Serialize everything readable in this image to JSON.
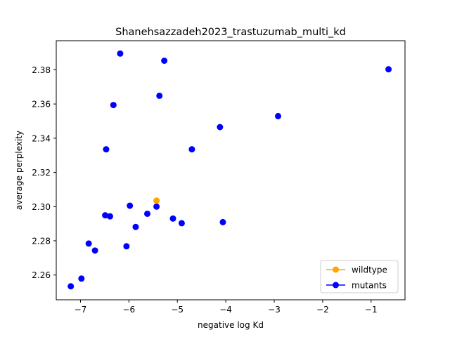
{
  "chart_data": {
    "type": "scatter",
    "title": "Shanehsazzadeh2023_trastuzumab_multi_kd",
    "xlabel": "negative log Kd",
    "ylabel": "average perplexity",
    "xlim": [
      -7.5,
      -0.3
    ],
    "ylim": [
      2.2455,
      2.397
    ],
    "xticks": [
      -7,
      -6,
      -5,
      -4,
      -3,
      -2,
      -1
    ],
    "xtick_labels": [
      "−7",
      "−6",
      "−5",
      "−4",
      "−3",
      "−2",
      "−1"
    ],
    "yticks": [
      2.26,
      2.28,
      2.3,
      2.32,
      2.34,
      2.36,
      2.38
    ],
    "ytick_labels": [
      "2.26",
      "2.28",
      "2.30",
      "2.32",
      "2.34",
      "2.36",
      "2.38"
    ],
    "grid": false,
    "legend_position": "bottom-right",
    "series": [
      {
        "name": "wildtype",
        "color": "#ffa500",
        "points": [
          {
            "x": -5.43,
            "y": 2.3035
          }
        ]
      },
      {
        "name": "mutants",
        "color": "#0000ff",
        "points": [
          {
            "x": -6.18,
            "y": 2.3895
          },
          {
            "x": -5.27,
            "y": 2.3853
          },
          {
            "x": -0.64,
            "y": 2.3803
          },
          {
            "x": -5.37,
            "y": 2.3648
          },
          {
            "x": -6.32,
            "y": 2.3594
          },
          {
            "x": -2.92,
            "y": 2.3529
          },
          {
            "x": -4.12,
            "y": 2.3465
          },
          {
            "x": -6.47,
            "y": 2.3335
          },
          {
            "x": -4.7,
            "y": 2.3335
          },
          {
            "x": -5.98,
            "y": 2.3005
          },
          {
            "x": -5.43,
            "y": 2.3
          },
          {
            "x": -5.62,
            "y": 2.2958
          },
          {
            "x": -6.49,
            "y": 2.2949
          },
          {
            "x": -6.39,
            "y": 2.2943
          },
          {
            "x": -5.09,
            "y": 2.293
          },
          {
            "x": -4.06,
            "y": 2.2909
          },
          {
            "x": -4.91,
            "y": 2.2903
          },
          {
            "x": -5.86,
            "y": 2.2881
          },
          {
            "x": -6.83,
            "y": 2.2784
          },
          {
            "x": -6.05,
            "y": 2.2768
          },
          {
            "x": -6.7,
            "y": 2.2743
          },
          {
            "x": -6.98,
            "y": 2.2579
          },
          {
            "x": -7.2,
            "y": 2.2534
          }
        ]
      }
    ]
  }
}
